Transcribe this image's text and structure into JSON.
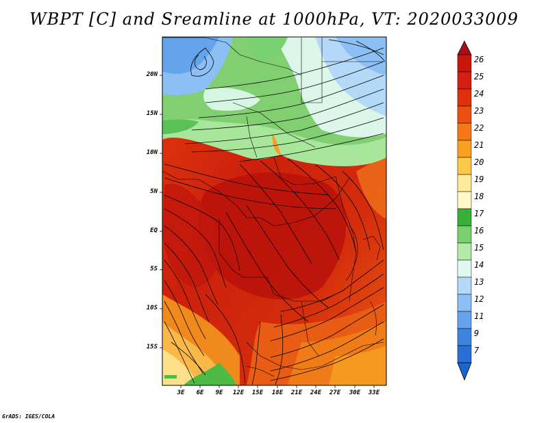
{
  "title": "WBPT [C] and Sreamline at 1000hPa, VT: 2020033009",
  "credit": "GrADS: IGES/COLA",
  "map": {
    "lat_labels": [
      "20N",
      "15N",
      "10N",
      "5N",
      "EQ",
      "5S",
      "10S",
      "15S"
    ],
    "lon_labels": [
      "3E",
      "6E",
      "9E",
      "12E",
      "15E",
      "18E",
      "21E",
      "24E",
      "27E",
      "30E",
      "33E"
    ]
  },
  "colorbar": {
    "labels": [
      "26",
      "25",
      "24",
      "23",
      "22",
      "21",
      "20",
      "19",
      "18",
      "17",
      "16",
      "15",
      "14",
      "13",
      "12",
      "11",
      "9",
      "7"
    ],
    "colors": [
      "#a50f15",
      "#c8160c",
      "#e0300c",
      "#ec5010",
      "#f47818",
      "#f9a020",
      "#fcc848",
      "#feea98",
      "#fff8c8",
      "#38b038",
      "#78d070",
      "#b4eaa8",
      "#e0f8f0",
      "#b4d8f8",
      "#8cc0f4",
      "#64a4ec",
      "#3c84e0",
      "#1e64d0"
    ]
  }
}
